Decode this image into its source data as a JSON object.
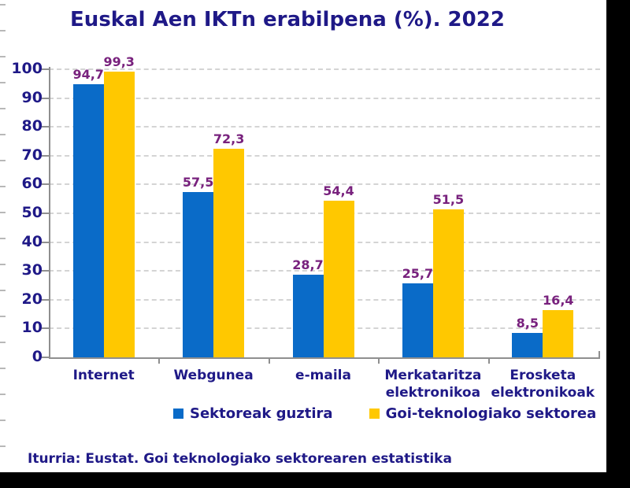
{
  "title": "Euskal Aen IKTn erabilpena (%). 2022",
  "source": "Iturria: Eustat. Goi teknologiako sektorearen estatistika",
  "colors": {
    "title_text": "#1f1987",
    "axis_text": "#1f1987",
    "value_label_text": "#78217d",
    "series1": "#0a6bc8",
    "series2": "#ffc800",
    "gridline": "#d4d4d4",
    "axis_line": "#8f8f8f",
    "background": "#ffffff",
    "outer_background": "#000000"
  },
  "chart_data": {
    "type": "bar",
    "title": "Euskal Aen IKTn erabilpena (%). 2022",
    "categories": [
      "Internet",
      "Webgunea",
      "e-maila",
      "Merkataritza elektronikoa",
      "Erosketa elektronikoak"
    ],
    "category_display_lines": [
      [
        "Internet"
      ],
      [
        "Webgunea"
      ],
      [
        "e-maila"
      ],
      [
        "Merkataritza",
        "elektronikoa"
      ],
      [
        "Erosketa",
        "elektronikoak"
      ]
    ],
    "series": [
      {
        "name": "Sektoreak guztira",
        "color": "#0a6bc8",
        "values": [
          94.7,
          57.5,
          28.7,
          25.7,
          8.5
        ],
        "labels": [
          "94,7",
          "57,5",
          "28,7",
          "25,7",
          "8,5"
        ]
      },
      {
        "name": "Goi-teknologiako sektorea",
        "color": "#ffc800",
        "values": [
          99.3,
          72.3,
          54.4,
          51.5,
          16.4
        ],
        "labels": [
          "99,3",
          "72,3",
          "54,4",
          "51,5",
          "16,4"
        ]
      }
    ],
    "xlabel": "",
    "ylabel": "",
    "ylim": [
      0,
      100
    ],
    "y_ticks": [
      0,
      10,
      20,
      30,
      40,
      50,
      60,
      70,
      80,
      90,
      100
    ],
    "grid": "horizontal-dashed",
    "legend_position": "bottom",
    "value_labels": "above-bars"
  }
}
